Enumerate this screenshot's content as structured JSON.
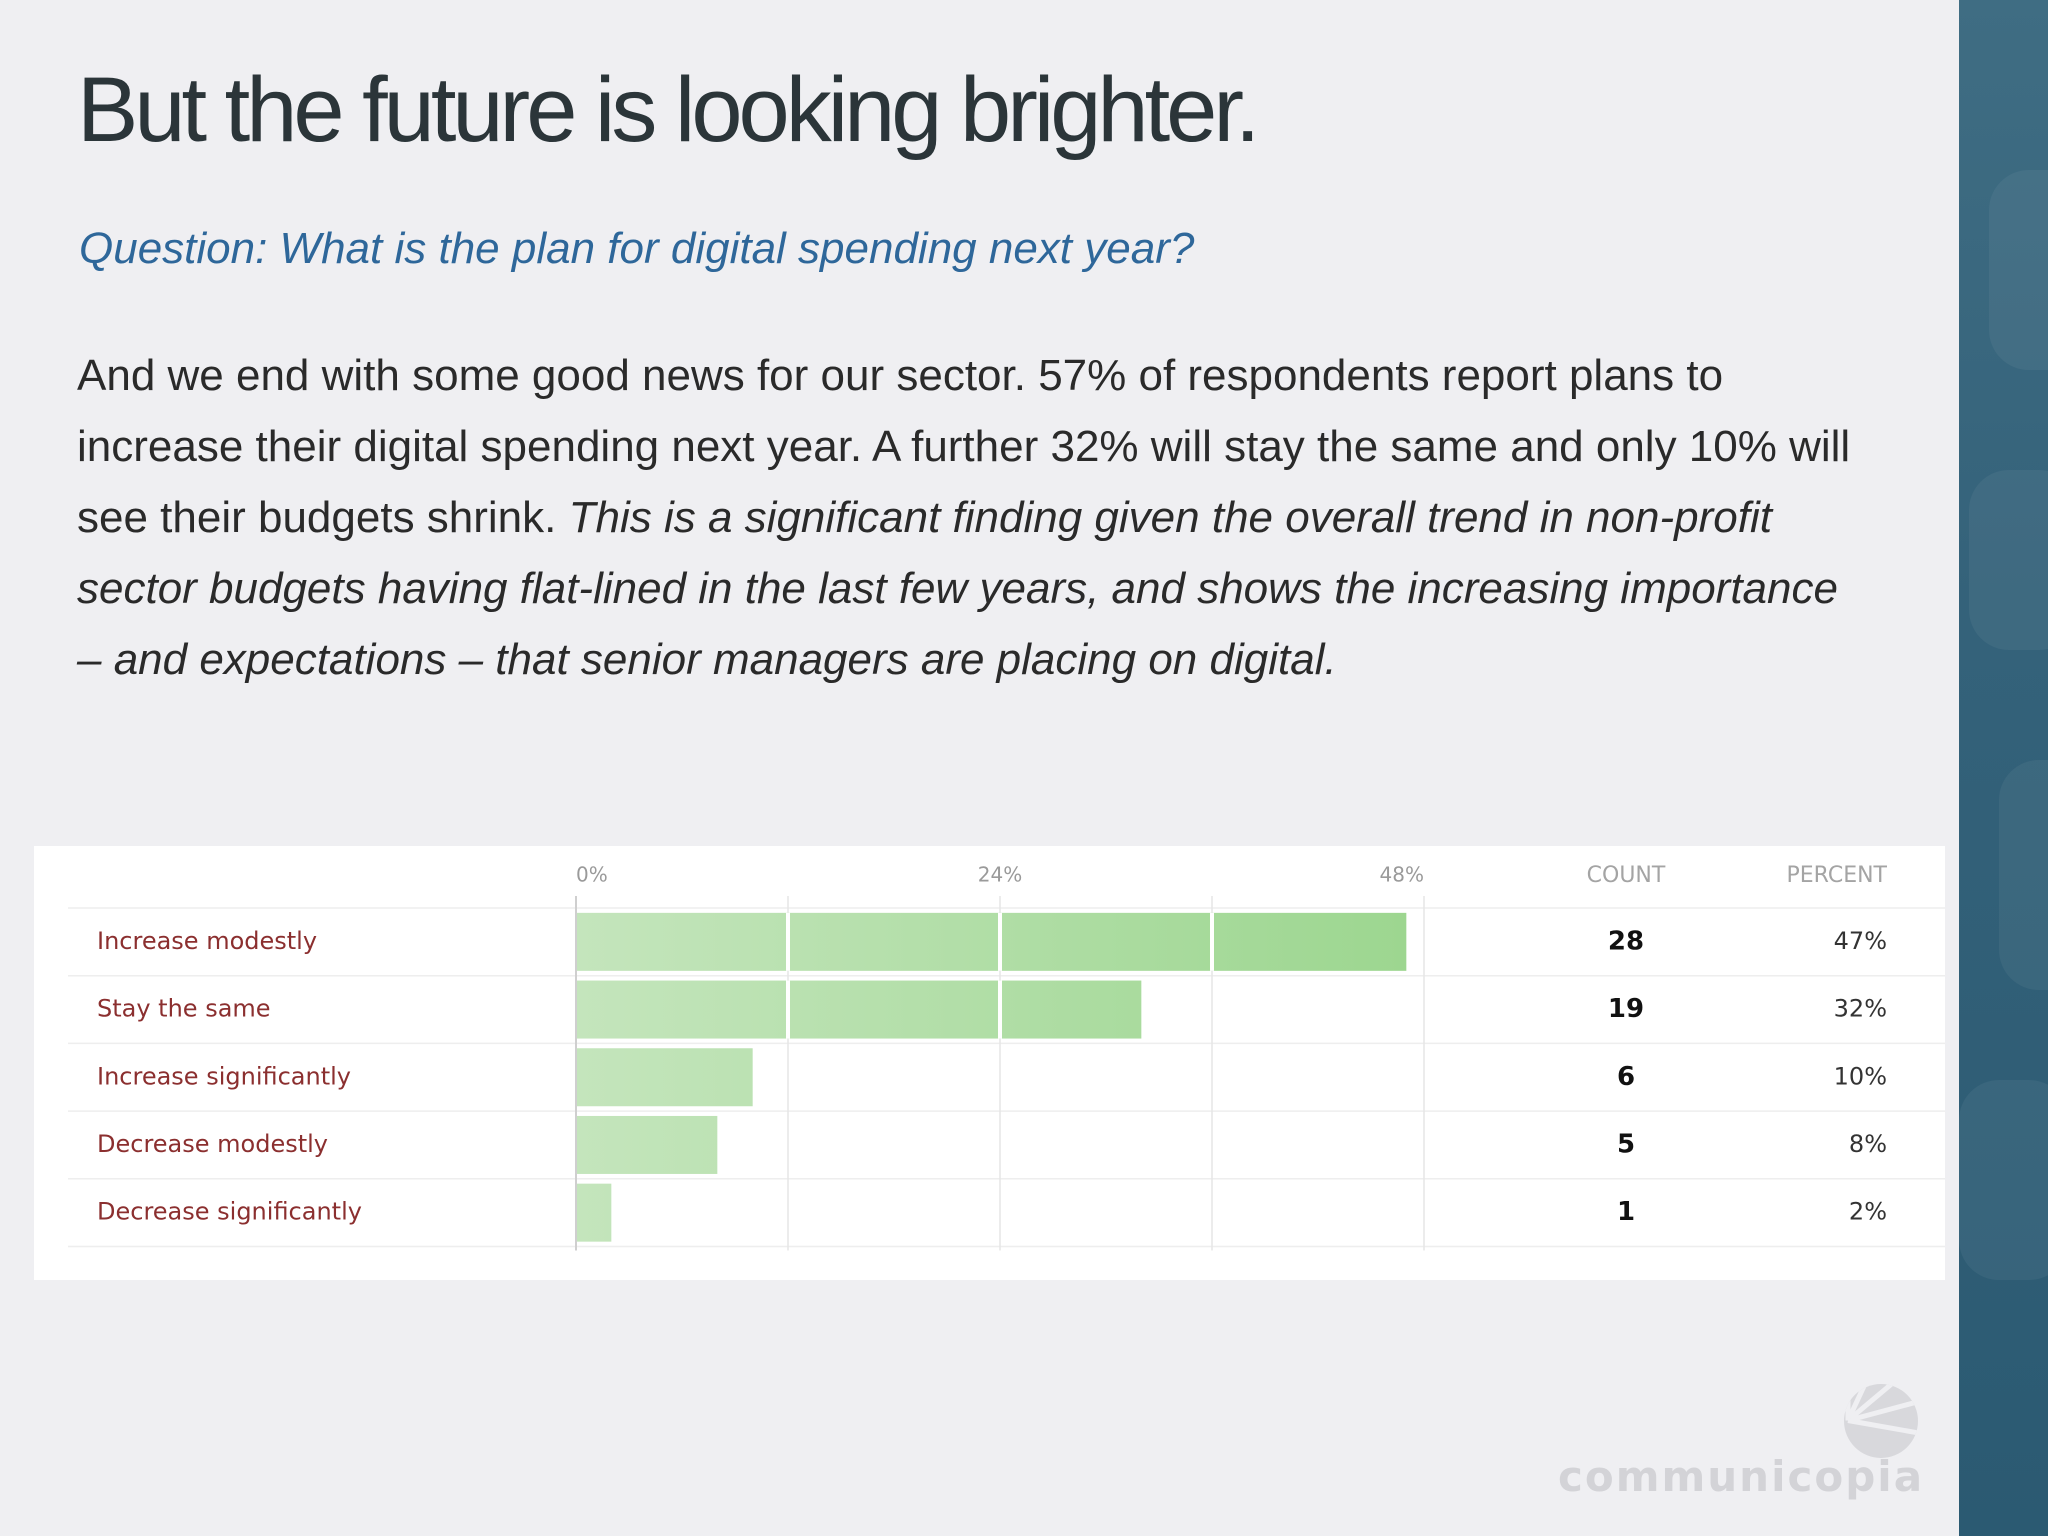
{
  "slide": {
    "title": "But the future is looking brighter.",
    "question": "Question: What is the plan for digital spending next year?",
    "body_plain": "And we end with some good news for our sector. 57% of respondents report plans to increase their digital spending next year. A further 32% will stay the same and only 10% will see their budgets shrink.",
    "body_italic": "This is a significant finding given the overall trend in non-profit sector budgets having flat-lined in the last few years, and shows the increasing importance – and expectations – that senior managers are placing on digital."
  },
  "brand": {
    "name": "communicopia",
    "icon": "shell-logo-icon"
  },
  "colors": {
    "title": "#2b3539",
    "question": "#2e679a",
    "category_label": "#8b2f2f",
    "bar_light": "#c4e5bc",
    "bar_dark": "#9cd68f",
    "side_panel": "#34627a"
  },
  "chart_data": {
    "type": "bar",
    "orientation": "horizontal",
    "title": "",
    "xlabel": "",
    "ylabel": "",
    "xlim": [
      0,
      48
    ],
    "x_ticks": [
      {
        "value": 0,
        "label": "0%"
      },
      {
        "value": 24,
        "label": "24%"
      },
      {
        "value": 48,
        "label": "48%"
      }
    ],
    "grid": true,
    "count_header": "COUNT",
    "percent_header": "PERCENT",
    "categories": [
      "Increase modestly",
      "Stay the same",
      "Increase significantly",
      "Decrease modestly",
      "Decrease significantly"
    ],
    "values": [
      47,
      32,
      10,
      8,
      2
    ],
    "counts": [
      "28",
      "19",
      "6",
      "5",
      "1"
    ],
    "percent_labels": [
      "47%",
      "32%",
      "10%",
      "8%",
      "2%"
    ]
  }
}
